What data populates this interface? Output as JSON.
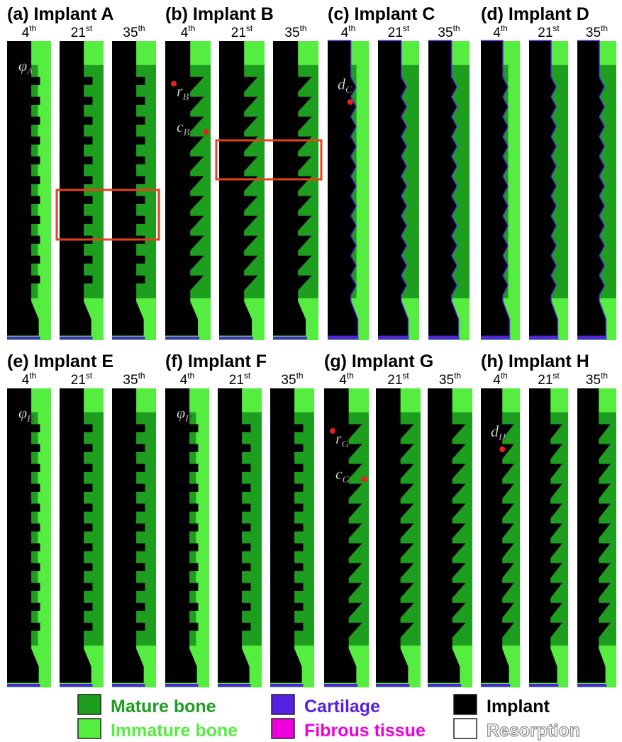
{
  "days": [
    {
      "number": "4",
      "suffix": "th"
    },
    {
      "number": "21",
      "suffix": "st"
    },
    {
      "number": "35",
      "suffix": "th"
    }
  ],
  "panels": [
    {
      "title": "(a) Implant A",
      "annotations": [
        {
          "symbol": "φ",
          "subscript": "A"
        }
      ]
    },
    {
      "title": "(b) Implant B",
      "annotations": [
        {
          "symbol": "r",
          "subscript": "B"
        },
        {
          "symbol": "c",
          "subscript": "B"
        }
      ]
    },
    {
      "title": "(c) Implant C",
      "annotations": [
        {
          "symbol": "d",
          "subscript": "C"
        }
      ]
    },
    {
      "title": "(d) Implant D",
      "annotations": []
    },
    {
      "title": "(e) Implant E",
      "annotations": [
        {
          "symbol": "φ",
          "subscript": "E"
        }
      ]
    },
    {
      "title": "(f) Implant F",
      "annotations": [
        {
          "symbol": "φ",
          "subscript": "F"
        }
      ]
    },
    {
      "title": "(g) Implant G",
      "annotations": [
        {
          "symbol": "r",
          "subscript": "G"
        },
        {
          "symbol": "c",
          "subscript": "G"
        }
      ]
    },
    {
      "title": "(h) Implant H",
      "annotations": [
        {
          "symbol": "d",
          "subscript": "H"
        }
      ]
    }
  ],
  "legend": [
    "Mature bone",
    "Immature bone",
    "Cartilage",
    "Fibrous tissue",
    "Implant",
    "Resorption"
  ]
}
